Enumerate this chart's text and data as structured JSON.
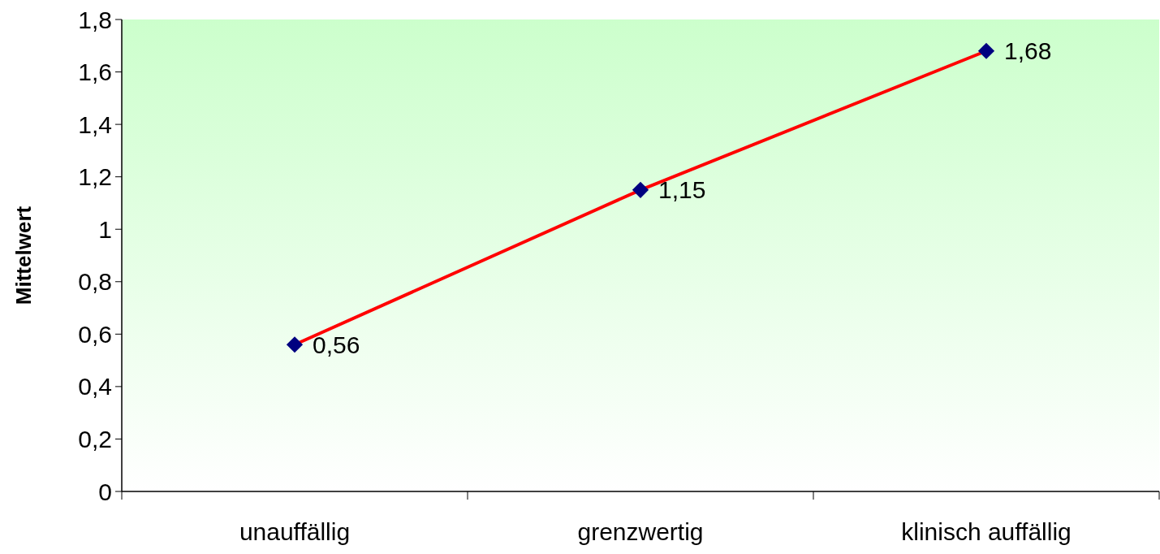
{
  "chart_data": {
    "type": "line",
    "ylabel": "Mittelwert",
    "categories": [
      "unauffällig",
      "grenzwertig",
      "klinisch auffällig"
    ],
    "series": [
      {
        "color": "#ff0000",
        "values": [
          0.56,
          1.15,
          1.68
        ],
        "value_labels": [
          "0,56",
          "1,15",
          "1,68"
        ]
      }
    ],
    "marker": "diamond",
    "line_style": "solid",
    "ylim": [
      0,
      1.8
    ],
    "yticks": [
      0,
      {
        "value": 0.2,
        "label": "0,2"
      },
      {
        "value": 0.4,
        "label": "0,4"
      },
      {
        "value": 0.6,
        "label": "0,6"
      },
      {
        "value": 0.8,
        "label": "0,8"
      },
      1,
      {
        "value": 1.2,
        "label": "1,2"
      },
      {
        "value": 1.4,
        "label": "1,4"
      },
      {
        "value": 1.6,
        "label": "1,6"
      },
      {
        "value": 1.8,
        "label": "1,8"
      }
    ]
  }
}
